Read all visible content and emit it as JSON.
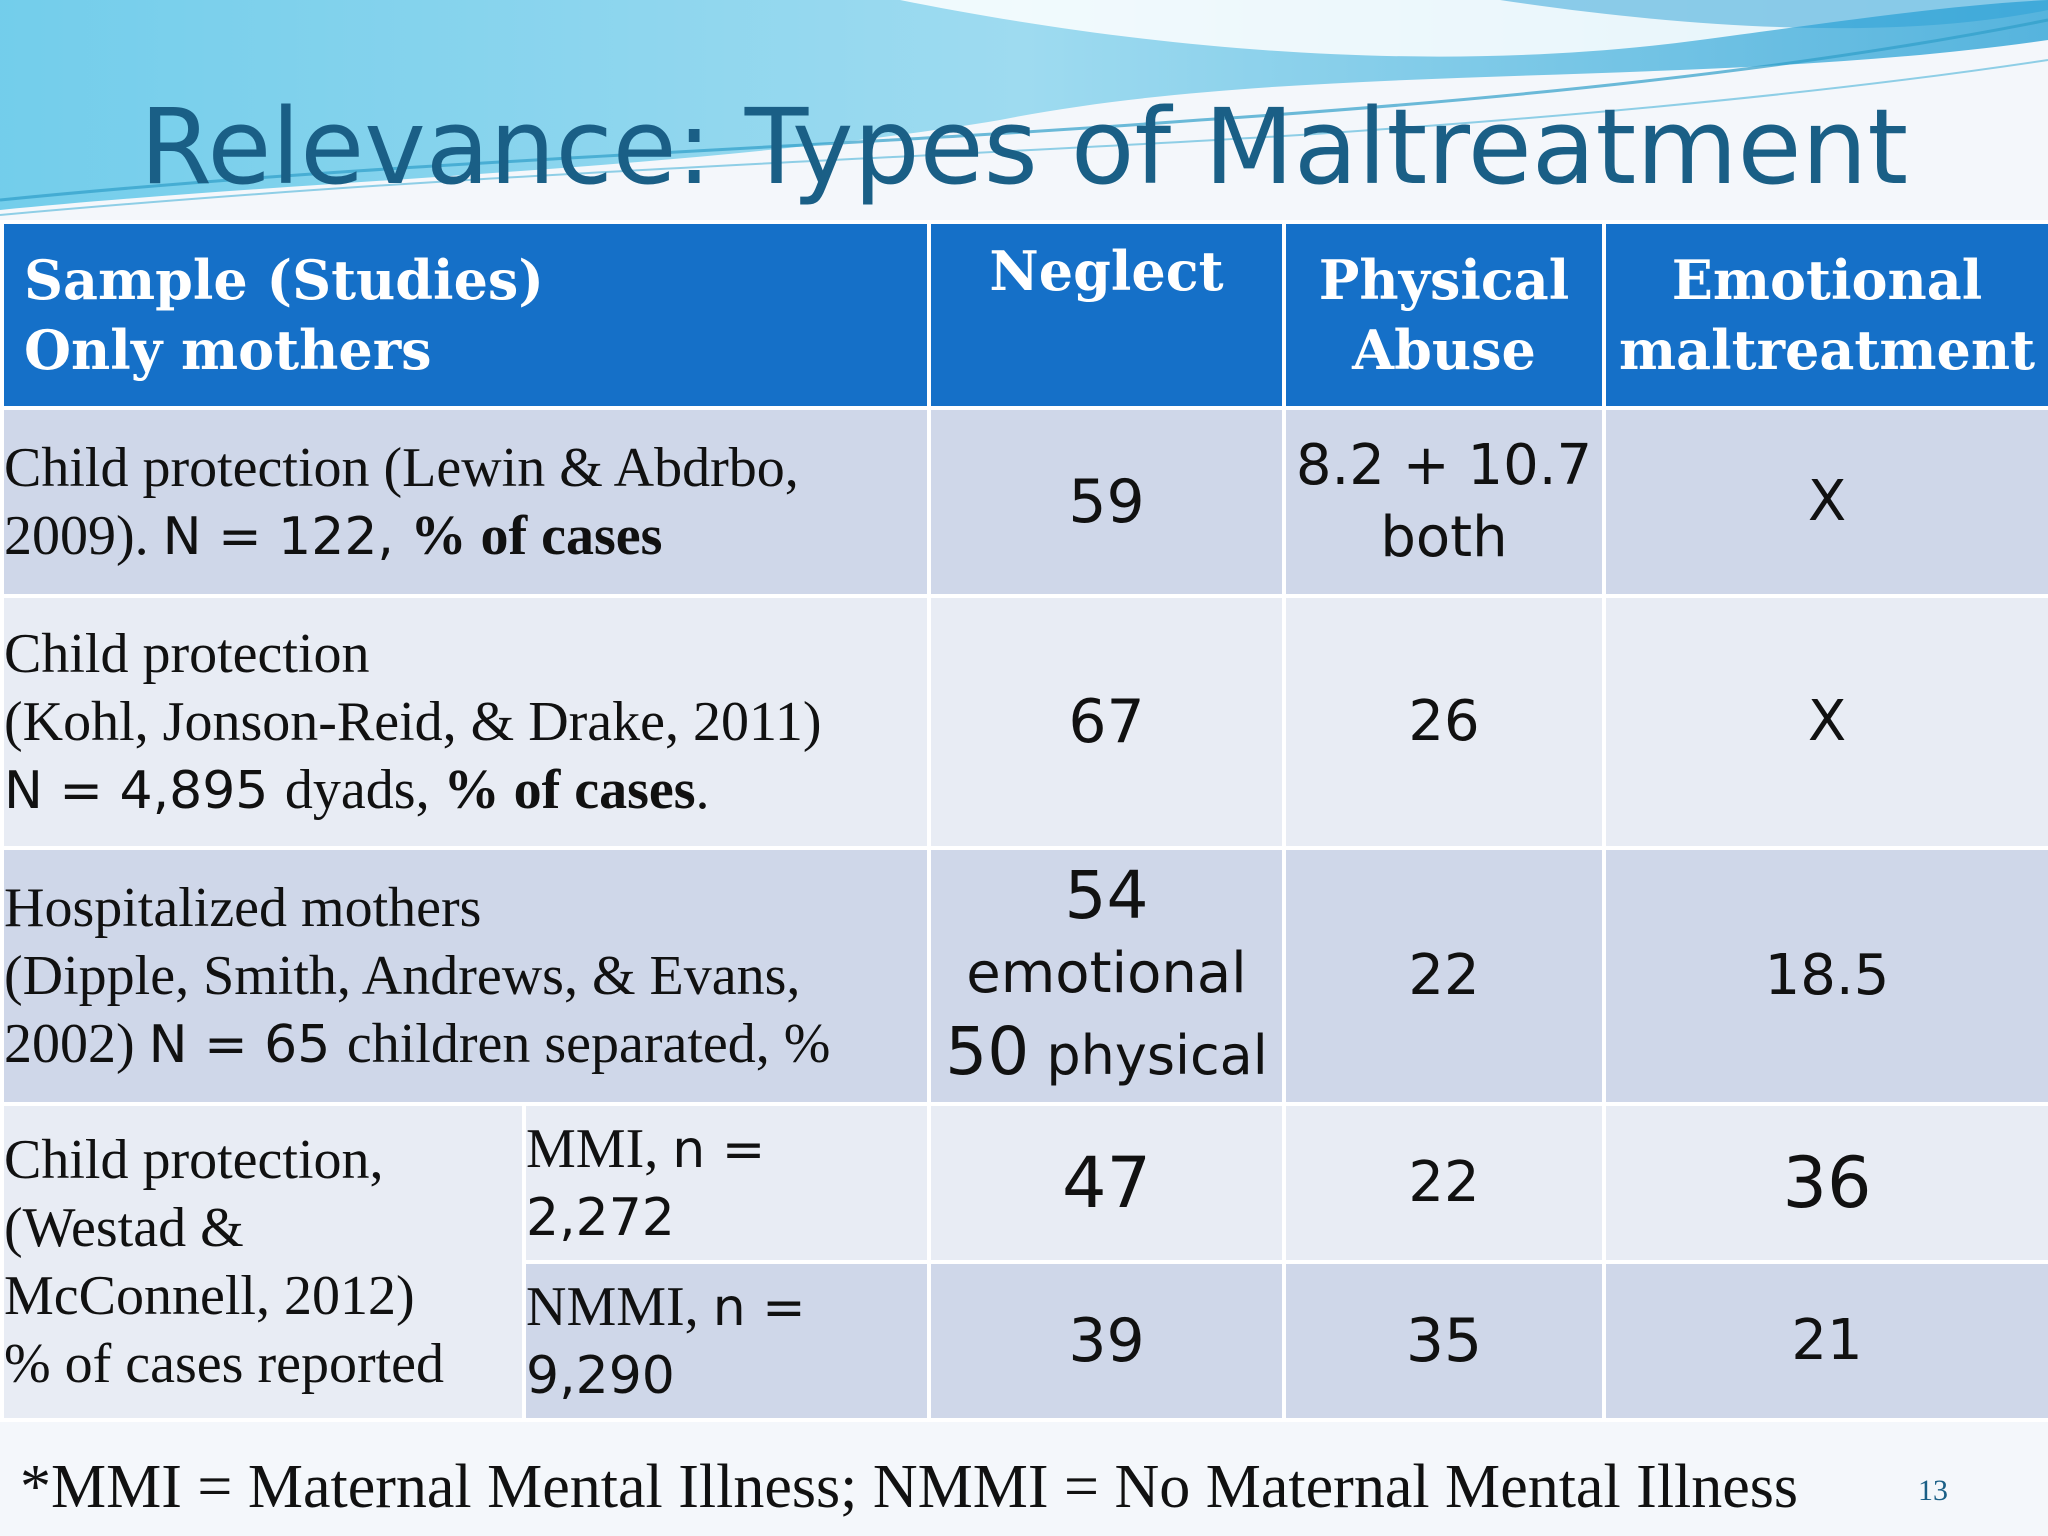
{
  "title": "Relevance: Types of Maltreatment",
  "header": {
    "sample_line1": "Sample  (Studies)",
    "sample_line2": "Only  mothers",
    "neglect": "Neglect",
    "physical_line1": "Physical",
    "physical_line2": "Abuse",
    "emotional_line1": "Emotional",
    "emotional_line2": "maltreatment"
  },
  "rows": [
    {
      "desc_line1": "Child protection (Lewin & Abdrbo,",
      "desc_line2_a": "2009).  ",
      "desc_line2_b": "N = 122, ",
      "desc_line2_c": "% of cases",
      "neglect": "59",
      "physical_line1": "8.2 + 10.7",
      "physical_line2": "both",
      "emotional": "X"
    },
    {
      "desc_line1": "Child protection",
      "desc_line2": "(Kohl, Jonson-Reid, & Drake, 2011)",
      "desc_line3_a": "N = 4,895 ",
      "desc_line3_b": "dyads, ",
      "desc_line3_c": "% of cases",
      "desc_line3_d": ".",
      "neglect": "67",
      "physical": "26",
      "emotional": "X"
    },
    {
      "desc_line1": "Hospitalized mothers",
      "desc_line2": "(Dipple, Smith, Andrews, & Evans,",
      "desc_line3_a": "2002) ",
      "desc_line3_b": "N = 65 ",
      "desc_line3_c": "children separated, %",
      "neglect_num1": "54",
      "neglect_text1": "emotional",
      "neglect_num2": "50",
      "neglect_text2": " physical",
      "physical": "22",
      "emotional": "18.5"
    }
  ],
  "westad": {
    "desc_line1": "Child protection,",
    "desc_line2": "(Westad &",
    "desc_line3": "McConnell, 2012)",
    "desc_line4": "% of cases reported",
    "mmi": {
      "label_a": "MMI, ",
      "label_b": "n =",
      "label_c": "2,272",
      "neglect": "47",
      "physical": "22",
      "emotional": "36"
    },
    "nmmi": {
      "label_a": "NMMI, ",
      "label_b": "n =",
      "label_c": "9,290",
      "neglect": "39",
      "physical": "35",
      "emotional": "21"
    }
  },
  "footnote": "*MMI = Maternal Mental Illness; NMMI = No Maternal Mental Illness",
  "page_number": "13"
}
